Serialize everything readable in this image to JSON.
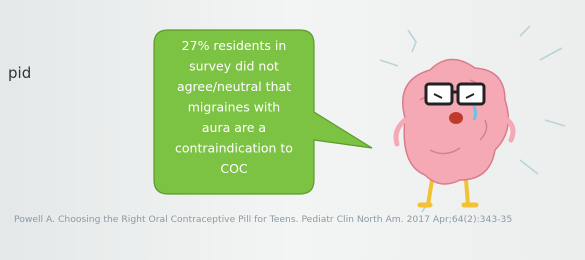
{
  "slide": {
    "fragment_text": "pid",
    "callout": {
      "lines": [
        "27% residents in",
        "survey did not",
        "agree/neutral that",
        "migraines with",
        "aura are a",
        "contraindication to",
        "COC"
      ]
    },
    "citation": "Powell A. Choosing the Right Oral Contraceptive Pill for Teens. Pediatr Clin North Am. 2017 Apr;64(2):343-35"
  }
}
